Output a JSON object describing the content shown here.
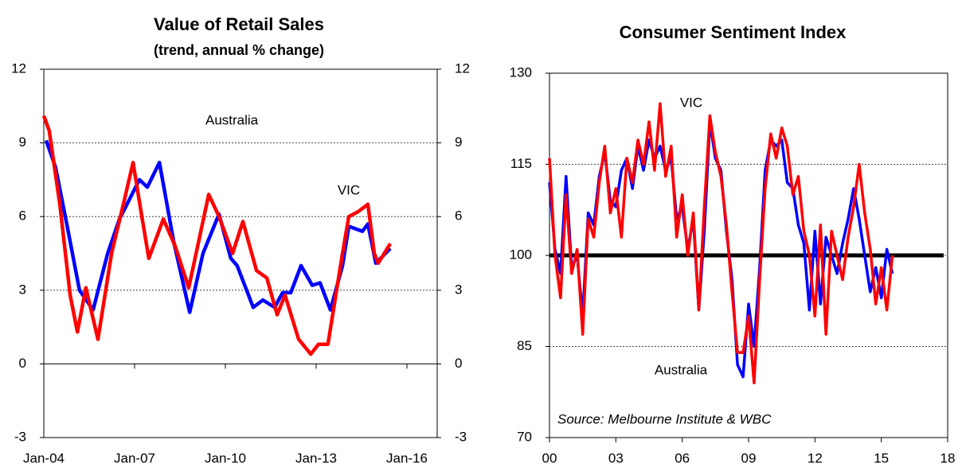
{
  "chart_data": [
    {
      "type": "line",
      "title": "Value of Retail Sales",
      "subtitle": "(trend, annual % change)",
      "xlim": [
        2004,
        2017
      ],
      "xticks": [
        {
          "value": 2004,
          "label": "Jan-04"
        },
        {
          "value": 2007,
          "label": "Jan-07"
        },
        {
          "value": 2010,
          "label": "Jan-10"
        },
        {
          "value": 2013,
          "label": "Jan-13"
        },
        {
          "value": 2016,
          "label": "Jan-16"
        }
      ],
      "ylim": [
        -3,
        12
      ],
      "yticks": [
        -3,
        0,
        3,
        6,
        9,
        12
      ],
      "right_axis": true,
      "grid": true,
      "series": [
        {
          "name": "Australia",
          "color": "#0000ff",
          "x": [
            2004.08,
            2004.39,
            2004.79,
            2005.18,
            2005.63,
            2006.11,
            2006.5,
            2007.16,
            2007.42,
            2007.82,
            2008.29,
            2008.82,
            2009.26,
            2009.79,
            2010.18,
            2010.39,
            2010.92,
            2011.24,
            2011.63,
            2011.89,
            2012.16,
            2012.5,
            2012.87,
            2013.13,
            2013.47,
            2013.87,
            2014.08,
            2014.53,
            2014.71,
            2014.97,
            2015.45
          ],
          "values": [
            9.1,
            8.0,
            5.5,
            3.0,
            2.2,
            4.5,
            5.9,
            7.5,
            7.2,
            8.2,
            5.0,
            2.1,
            4.5,
            6.1,
            4.3,
            4.0,
            2.3,
            2.6,
            2.3,
            2.9,
            2.9,
            4.0,
            3.2,
            3.3,
            2.2,
            4.0,
            5.6,
            5.4,
            5.7,
            4.1,
            4.7
          ]
        },
        {
          "name": "VIC",
          "color": "#ff0000",
          "x": [
            2004.0,
            2004.18,
            2004.53,
            2004.87,
            2005.11,
            2005.39,
            2005.79,
            2006.24,
            2006.63,
            2006.95,
            2007.24,
            2007.47,
            2007.95,
            2008.34,
            2008.79,
            2009.45,
            2009.79,
            2010.24,
            2010.58,
            2011.03,
            2011.37,
            2011.71,
            2011.97,
            2012.42,
            2012.82,
            2013.08,
            2013.39,
            2013.87,
            2014.08,
            2014.39,
            2014.71,
            2014.92,
            2015.05,
            2015.45
          ],
          "values": [
            10.1,
            9.5,
            6.5,
            2.8,
            1.3,
            3.1,
            1.0,
            4.5,
            6.5,
            8.2,
            6.0,
            4.3,
            5.9,
            4.8,
            3.1,
            6.9,
            6.0,
            4.5,
            5.8,
            3.8,
            3.5,
            2.0,
            2.8,
            1.0,
            0.4,
            0.8,
            0.8,
            4.5,
            6.0,
            6.2,
            6.5,
            4.5,
            4.1,
            4.9
          ]
        }
      ],
      "annotations": [
        {
          "text": "Australia",
          "series": 0
        },
        {
          "text": "VIC",
          "series": 1
        }
      ]
    },
    {
      "type": "line",
      "title": "Consumer Sentiment Index",
      "xlim": [
        0,
        18
      ],
      "xticks": [
        {
          "value": 0,
          "label": "00"
        },
        {
          "value": 3,
          "label": "03"
        },
        {
          "value": 6,
          "label": "06"
        },
        {
          "value": 9,
          "label": "09"
        },
        12,
        15,
        18
      ],
      "ylim": [
        70,
        130
      ],
      "yticks": [
        70,
        85,
        100,
        115,
        130
      ],
      "right_axis": false,
      "grid": true,
      "hline": {
        "value": 100,
        "color": "#000000"
      },
      "x": [
        0,
        0.25,
        0.5,
        0.75,
        1,
        1.25,
        1.5,
        1.75,
        2,
        2.25,
        2.5,
        2.75,
        3,
        3.25,
        3.5,
        3.75,
        4,
        4.25,
        4.5,
        4.75,
        5,
        5.25,
        5.5,
        5.75,
        6,
        6.25,
        6.5,
        6.75,
        7,
        7.25,
        7.5,
        7.75,
        8,
        8.25,
        8.5,
        8.75,
        9,
        9.25,
        9.5,
        9.75,
        10,
        10.25,
        10.5,
        10.75,
        11,
        11.25,
        11.5,
        11.75,
        12,
        12.25,
        12.5,
        12.75,
        13,
        13.25,
        13.5,
        13.75,
        14,
        14.25,
        14.5,
        14.75,
        15,
        15.25,
        15.5
      ],
      "series": [
        {
          "name": "Australia",
          "color": "#0000ff",
          "values": [
            112,
            101,
            97,
            113,
            98,
            100,
            90,
            107,
            105,
            113,
            117,
            109,
            108,
            114,
            116,
            111,
            118,
            114,
            119,
            116,
            118,
            114,
            116,
            106,
            108,
            101,
            106,
            91,
            104,
            122,
            116,
            114,
            104,
            96,
            82,
            80,
            92,
            85,
            98,
            114,
            119,
            118,
            119,
            112,
            111,
            105,
            102,
            91,
            104,
            92,
            103,
            100,
            97,
            102,
            106,
            111,
            106,
            100,
            94,
            98,
            93,
            101,
            97
          ]
        },
        {
          "name": "VIC",
          "color": "#ff0000",
          "values": [
            116,
            100,
            93,
            110,
            97,
            101,
            87,
            106,
            103,
            112,
            118,
            107,
            111,
            103,
            116,
            112,
            119,
            115,
            122,
            114,
            125,
            113,
            118,
            103,
            110,
            100,
            107,
            91,
            108,
            123,
            117,
            113,
            105,
            94,
            84,
            84,
            90,
            79,
            96,
            111,
            120,
            116,
            121,
            118,
            110,
            113,
            104,
            100,
            90,
            105,
            87,
            104,
            100,
            96,
            103,
            108,
            115,
            107,
            101,
            92,
            98,
            91,
            100
          ]
        }
      ],
      "annotations": [
        {
          "text": "VIC",
          "series": 1
        },
        {
          "text": "Australia",
          "series": 0
        },
        {
          "text": "Source: Melbourne Institute & WBC"
        }
      ]
    }
  ]
}
